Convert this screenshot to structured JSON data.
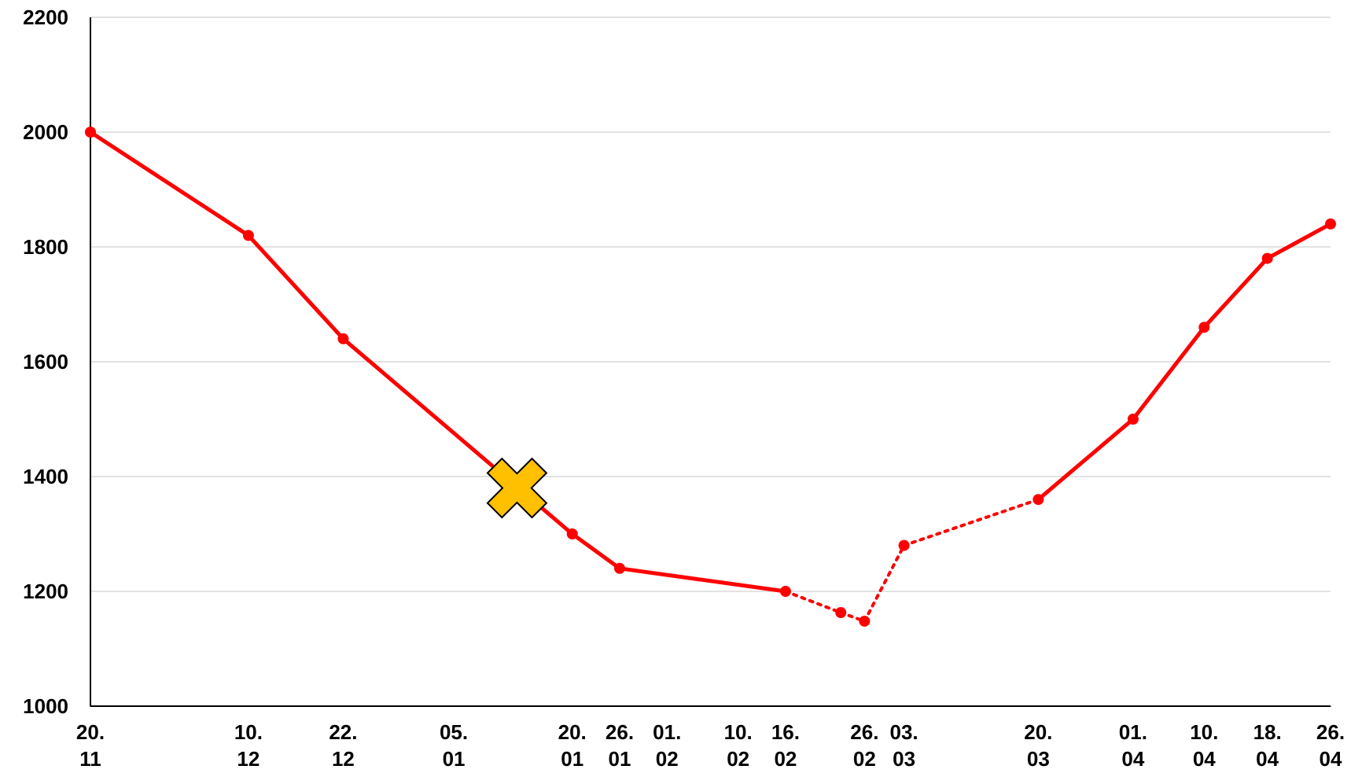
{
  "chart_data": {
    "type": "line",
    "x": [
      "20.11",
      "10.12",
      "22.12",
      "20.01",
      "26.01",
      "16.02",
      "23.02",
      "26.02",
      "03.03",
      "20.03",
      "01.04",
      "10.04",
      "18.04",
      "26.04"
    ],
    "series": [
      {
        "color": "#ff0000",
        "values": [
          2000,
          1820,
          1640,
          1300,
          1240,
          1200,
          1163,
          1148,
          1280,
          1360,
          1500,
          1660,
          1780,
          1840
        ]
      }
    ],
    "segment_styles": [
      "solid",
      "solid",
      "solid",
      "solid",
      "solid",
      "dotted",
      "dotted",
      "dotted",
      "dotted",
      "solid",
      "solid",
      "solid",
      "solid"
    ],
    "xlim": [
      "20.11",
      "26.04"
    ],
    "xticks": [
      {
        "value": "20.11",
        "label": "20. 11"
      },
      {
        "value": "10.12",
        "label": "10. 12"
      },
      {
        "value": "22.12",
        "label": "22. 12"
      },
      {
        "value": "05.01",
        "label": "05. 01"
      },
      {
        "value": "20.01",
        "label": "20. 01"
      },
      {
        "value": "26.01",
        "label": "26. 01"
      },
      {
        "value": "01.02",
        "label": "01. 02"
      },
      {
        "value": "10.02",
        "label": "10. 02"
      },
      {
        "value": "16.02",
        "label": "16. 02"
      },
      {
        "value": "26.02",
        "label": "26. 02"
      },
      {
        "value": "03.03",
        "label": "03. 03"
      },
      {
        "value": "20.03",
        "label": "20. 03"
      },
      {
        "value": "01.04",
        "label": "01. 04"
      },
      {
        "value": "10.04",
        "label": "10. 04"
      },
      {
        "value": "18.04",
        "label": "18. 04"
      },
      {
        "value": "26.04",
        "label": "26. 04"
      }
    ],
    "ylim": [
      1000,
      2200
    ],
    "yticks": [
      1000,
      1200,
      1400,
      1600,
      1800,
      2000,
      2200
    ],
    "grid": true,
    "annotations": [
      {
        "x": "13.01",
        "y": 1380,
        "marker": "x",
        "color": "#ffc000"
      }
    ]
  }
}
